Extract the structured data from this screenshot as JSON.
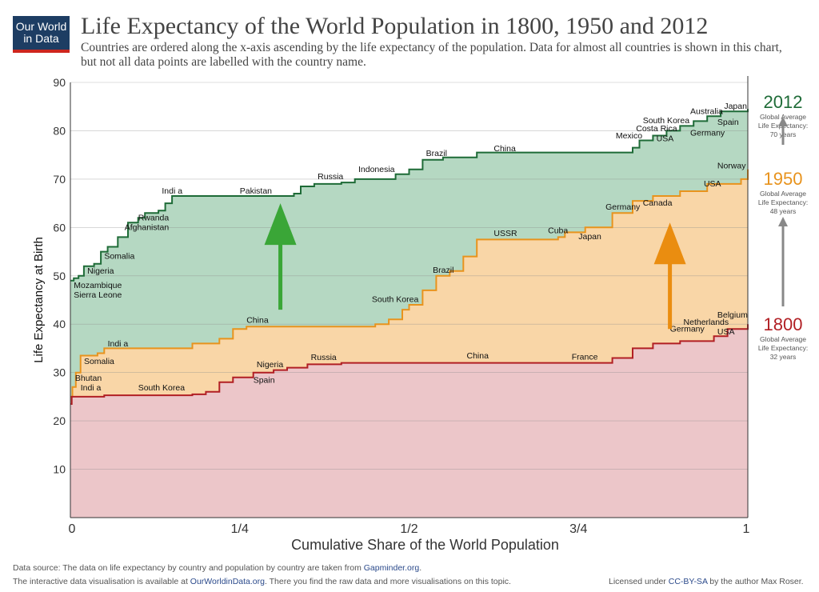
{
  "logo": {
    "line1": "Our World",
    "line2": "in Data"
  },
  "title": "Life Expectancy of the World Population in 1800, 1950 and 2012",
  "subtitle": "Countries are ordered along the x-axis ascending by the life expectancy of the population. Data for almost all countries is shown in this chart, but not all data points are labelled with the country name.",
  "footer": {
    "source_prefix": "Data source: The data on life expectancy by country and population by country are taken from ",
    "source_link": "Gapminder.org",
    "source_suffix": ".",
    "interactive_prefix": "The interactive data visualisation is available at ",
    "interactive_link": "OurWorldinData.org",
    "interactive_suffix": ". There you find the raw data and more visualisations on this topic.",
    "license_prefix": "Licensed under ",
    "license_link": "CC-BY-SA",
    "license_suffix": " by the author Max Roser."
  },
  "chart_data": {
    "type": "area",
    "xlabel": "Cumulative Share of the World Population",
    "ylabel": "Life Expectancy at Birth",
    "xlim": [
      0,
      1
    ],
    "ylim": [
      0,
      90
    ],
    "x_ticks": [
      "0",
      "1/4",
      "1/2",
      "3/4",
      "1"
    ],
    "y_ticks": [
      10,
      20,
      30,
      40,
      50,
      60,
      70,
      80,
      90
    ],
    "grid": true,
    "series": [
      {
        "name": "2012",
        "color": "#1e6b37",
        "fill": "#b5d8c2",
        "points": [
          [
            0,
            49
          ],
          [
            0.005,
            49.5
          ],
          [
            0.012,
            50
          ],
          [
            0.02,
            52
          ],
          [
            0.035,
            52.5
          ],
          [
            0.045,
            55
          ],
          [
            0.055,
            56
          ],
          [
            0.07,
            58
          ],
          [
            0.085,
            61
          ],
          [
            0.1,
            62
          ],
          [
            0.11,
            63
          ],
          [
            0.13,
            63.5
          ],
          [
            0.14,
            65
          ],
          [
            0.15,
            66.5
          ],
          [
            0.16,
            66.5
          ],
          [
            0.3,
            66.5
          ],
          [
            0.33,
            67
          ],
          [
            0.34,
            68.5
          ],
          [
            0.36,
            69
          ],
          [
            0.4,
            69.3
          ],
          [
            0.42,
            70
          ],
          [
            0.48,
            71
          ],
          [
            0.5,
            72
          ],
          [
            0.52,
            74
          ],
          [
            0.55,
            74.5
          ],
          [
            0.6,
            75.5
          ],
          [
            0.7,
            75.5
          ],
          [
            0.82,
            75.5
          ],
          [
            0.83,
            76.5
          ],
          [
            0.84,
            78
          ],
          [
            0.86,
            79
          ],
          [
            0.88,
            80
          ],
          [
            0.9,
            81
          ],
          [
            0.92,
            82
          ],
          [
            0.94,
            83
          ],
          [
            0.96,
            84
          ],
          [
            1,
            84.5
          ]
        ],
        "labels": [
          [
            "Sierra Leone",
            0.005,
            45.5
          ],
          [
            "Mozambique",
            0.005,
            47.5
          ],
          [
            "Nigeria",
            0.025,
            50.5
          ],
          [
            "Somalia",
            0.05,
            53.5
          ],
          [
            "Afghanistan",
            0.08,
            59.5
          ],
          [
            "Rwanda",
            0.1,
            61.5
          ],
          [
            "Indi a",
            0.135,
            67
          ],
          [
            "Pakistan",
            0.25,
            67
          ],
          [
            "Russia",
            0.365,
            70
          ],
          [
            "Indonesia",
            0.425,
            71.5
          ],
          [
            "Brazil",
            0.525,
            74.8
          ],
          [
            "China",
            0.625,
            75.8
          ],
          [
            "Mexico",
            0.805,
            78.4
          ],
          [
            "USA",
            0.865,
            77.8
          ],
          [
            "Costa Rica",
            0.835,
            79.9
          ],
          [
            "South Korea",
            0.845,
            81.6
          ],
          [
            "Germany",
            0.915,
            79
          ],
          [
            "Spain",
            0.955,
            81.2
          ],
          [
            "Australia",
            0.915,
            83.5
          ],
          [
            "Japan",
            0.965,
            84.5
          ]
        ]
      },
      {
        "name": "1950",
        "color": "#e8931d",
        "fill": "#f9d6a7",
        "points": [
          [
            0,
            25
          ],
          [
            0.003,
            27
          ],
          [
            0.008,
            30
          ],
          [
            0.015,
            33.5
          ],
          [
            0.04,
            34
          ],
          [
            0.05,
            35
          ],
          [
            0.15,
            35
          ],
          [
            0.18,
            36
          ],
          [
            0.22,
            37
          ],
          [
            0.24,
            39
          ],
          [
            0.26,
            39.5
          ],
          [
            0.45,
            40
          ],
          [
            0.47,
            41
          ],
          [
            0.49,
            43
          ],
          [
            0.5,
            44
          ],
          [
            0.52,
            47
          ],
          [
            0.54,
            50
          ],
          [
            0.56,
            51
          ],
          [
            0.58,
            54
          ],
          [
            0.6,
            57.5
          ],
          [
            0.72,
            58
          ],
          [
            0.73,
            59
          ],
          [
            0.76,
            60
          ],
          [
            0.8,
            63
          ],
          [
            0.83,
            65.5
          ],
          [
            0.86,
            66.5
          ],
          [
            0.9,
            67.5
          ],
          [
            0.94,
            69
          ],
          [
            0.99,
            70
          ],
          [
            1,
            72
          ]
        ],
        "labels": [
          [
            "Bhutan",
            0.007,
            28.3
          ],
          [
            "Somalia",
            0.02,
            31.8
          ],
          [
            "Indi a",
            0.055,
            35.4
          ],
          [
            "China",
            0.26,
            40.3
          ],
          [
            "South Korea",
            0.445,
            44.6
          ],
          [
            "Brazil",
            0.535,
            50.6
          ],
          [
            "USSR",
            0.625,
            58.2
          ],
          [
            "Cuba",
            0.705,
            58.8
          ],
          [
            "Japan",
            0.75,
            57.6
          ],
          [
            "Germany",
            0.79,
            63.7
          ],
          [
            "Canada",
            0.845,
            64.5
          ],
          [
            "USA",
            0.935,
            68.5
          ],
          [
            "Norway",
            0.955,
            72.2
          ]
        ]
      },
      {
        "name": "1800",
        "color": "#b11f24",
        "fill": "#ecc6c9",
        "points": [
          [
            0,
            23.5
          ],
          [
            0.002,
            25
          ],
          [
            0.05,
            25.3
          ],
          [
            0.12,
            25.3
          ],
          [
            0.18,
            25.5
          ],
          [
            0.2,
            26
          ],
          [
            0.22,
            28
          ],
          [
            0.24,
            29
          ],
          [
            0.27,
            30
          ],
          [
            0.3,
            30.5
          ],
          [
            0.32,
            31
          ],
          [
            0.35,
            31.7
          ],
          [
            0.4,
            32
          ],
          [
            0.5,
            32
          ],
          [
            0.76,
            32
          ],
          [
            0.8,
            33
          ],
          [
            0.83,
            35
          ],
          [
            0.86,
            36
          ],
          [
            0.9,
            36.5
          ],
          [
            0.95,
            37.5
          ],
          [
            0.97,
            39
          ],
          [
            1,
            40
          ]
        ],
        "labels": [
          [
            "Indi a",
            0.015,
            26.3
          ],
          [
            "South Korea",
            0.1,
            26.3
          ],
          [
            "Spain",
            0.27,
            27.9
          ],
          [
            "Nigeria",
            0.275,
            31.1
          ],
          [
            "Russia",
            0.355,
            32.6
          ],
          [
            "China",
            0.585,
            32.9
          ],
          [
            "France",
            0.74,
            32.7
          ],
          [
            "Germany",
            0.885,
            38.5
          ],
          [
            "USA",
            0.955,
            37.9
          ],
          [
            "Netherlands",
            0.905,
            39.9
          ],
          [
            "Belgium",
            0.955,
            41.4
          ]
        ]
      }
    ],
    "arrows": [
      {
        "x": 0.31,
        "from": 43,
        "to": 65,
        "color": "#3aa637"
      },
      {
        "x": 0.885,
        "from": 39,
        "to": 61,
        "color": "#ea8d10"
      }
    ],
    "right_annotations": [
      {
        "year": "2012",
        "color": "#1e6b37",
        "text": [
          "Global Average",
          "Life Expectancy:",
          "70 years"
        ]
      },
      {
        "year": "1950",
        "color": "#e8931d",
        "text": [
          "Global Average",
          "Life Expectancy:",
          "48 years"
        ]
      },
      {
        "year": "1800",
        "color": "#b11f24",
        "text": [
          "Global Average",
          "Life Expectancy:",
          "32 years"
        ]
      }
    ]
  }
}
